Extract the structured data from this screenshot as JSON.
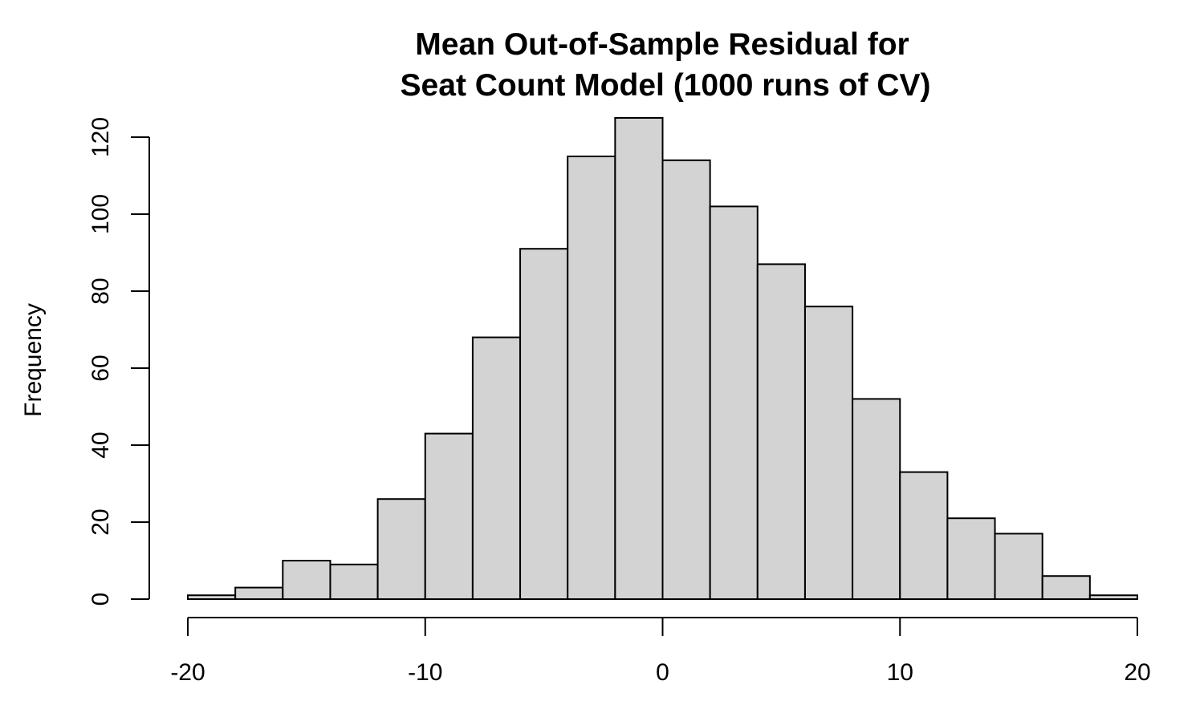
{
  "chart_data": {
    "type": "bar",
    "subtype": "histogram",
    "title_lines": [
      "Mean Out-of-Sample Residual for",
      "Seat Count Model (1000 runs of CV)"
    ],
    "xlabel": "",
    "ylabel": "Frequency",
    "xlim": [
      -20,
      20
    ],
    "ylim": [
      0,
      125
    ],
    "bin_edges": [
      -20,
      -18,
      -16,
      -14,
      -12,
      -10,
      -8,
      -6,
      -4,
      -2,
      0,
      2,
      4,
      6,
      8,
      10,
      12,
      14,
      16,
      18,
      20
    ],
    "values": [
      1,
      3,
      10,
      9,
      26,
      43,
      68,
      91,
      115,
      125,
      114,
      102,
      87,
      76,
      52,
      33,
      21,
      17,
      6,
      1
    ],
    "x_ticks": [
      -20,
      -10,
      0,
      10,
      20
    ],
    "y_ticks": [
      0,
      20,
      40,
      60,
      80,
      100,
      120
    ],
    "grid": false,
    "bar_color": "#d3d3d3",
    "border_color": "#000000"
  }
}
